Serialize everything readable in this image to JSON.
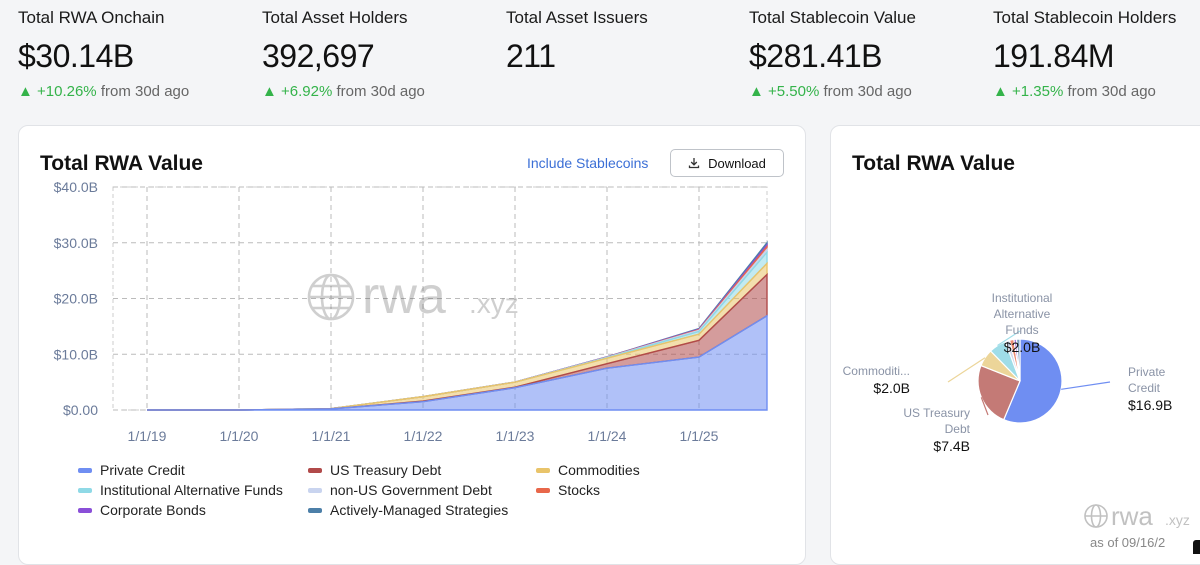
{
  "stats": [
    {
      "label": "Total RWA Onchain",
      "value": "$30.14B",
      "delta": "+10.26%",
      "suffix": "from 30d ago"
    },
    {
      "label": "Total Asset Holders",
      "value": "392,697",
      "delta": "+6.92%",
      "suffix": "from 30d ago"
    },
    {
      "label": "Total Asset Issuers",
      "value": "211",
      "delta": "",
      "suffix": ""
    },
    {
      "label": "Total Stablecoin Value",
      "value": "$281.41B",
      "delta": "+5.50%",
      "suffix": "from 30d ago"
    },
    {
      "label": "Total Stablecoin Holders",
      "value": "191.84M",
      "delta": "+1.35%",
      "suffix": "from 30d ago"
    }
  ],
  "colors": {
    "up": "#34b34a",
    "link": "#3b6fd6"
  },
  "left_card": {
    "title": "Total RWA Value",
    "include_link": "Include Stablecoins",
    "download_label": "Download",
    "watermark_main": "rwa",
    "watermark_suffix": ".xyz"
  },
  "right_card": {
    "title": "Total RWA Value",
    "watermark_main": "rwa",
    "watermark_suffix": ".xyz",
    "as_of": "as of 09/16/2"
  },
  "chart_data": [
    {
      "type": "area",
      "title": "Total RWA Value",
      "stacked": true,
      "x": [
        "1/1/19",
        "1/1/20",
        "1/1/21",
        "1/1/22",
        "1/1/23",
        "1/1/24",
        "1/1/25",
        "9/16/25"
      ],
      "x_ticks": [
        "1/1/19",
        "1/1/20",
        "1/1/21",
        "1/1/22",
        "1/1/23",
        "1/1/24",
        "1/1/25"
      ],
      "y_ticks": [
        "$0.00",
        "$10.0B",
        "$20.0B",
        "$30.0B",
        "$40.0B"
      ],
      "ylim": [
        0,
        40
      ],
      "y_unit": "B USD",
      "grid": true,
      "legend_position": "bottom",
      "series": [
        {
          "name": "Private Credit",
          "color": "#6f8ef2",
          "values": [
            0,
            0,
            0.2,
            1.5,
            4.0,
            7.5,
            9.5,
            16.9
          ]
        },
        {
          "name": "US Treasury Debt",
          "color": "#b14a4a",
          "values": [
            0,
            0,
            0,
            0.1,
            0.1,
            0.8,
            3.0,
            7.4
          ]
        },
        {
          "name": "Commodities",
          "color": "#e9c46a",
          "values": [
            0,
            0,
            0.05,
            0.8,
            0.9,
            1.0,
            1.1,
            2.0
          ]
        },
        {
          "name": "Institutional Alternative Funds",
          "color": "#8fd9e6",
          "values": [
            0,
            0,
            0,
            0,
            0,
            0.1,
            0.5,
            2.0
          ]
        },
        {
          "name": "non-US Government Debt",
          "color": "#c9d4ef",
          "values": [
            0,
            0,
            0,
            0,
            0,
            0.05,
            0.2,
            0.5
          ]
        },
        {
          "name": "Stocks",
          "color": "#e8674a",
          "values": [
            0,
            0,
            0,
            0,
            0,
            0.02,
            0.1,
            0.5
          ]
        },
        {
          "name": "Corporate Bonds",
          "color": "#8a4fd8",
          "values": [
            0,
            0,
            0,
            0,
            0.01,
            0.05,
            0.1,
            0.3
          ]
        },
        {
          "name": "Actively-Managed Strategies",
          "color": "#4c7fa8",
          "values": [
            0,
            0,
            0,
            0,
            0,
            0.02,
            0.1,
            0.4
          ]
        }
      ]
    },
    {
      "type": "pie",
      "title": "Total RWA Value",
      "slices": [
        {
          "name": "Private Credit",
          "value": 16.9,
          "label_lines": [
            "Private",
            "Credit"
          ],
          "amount": "$16.9B",
          "color": "#6f8ef2"
        },
        {
          "name": "US Treasury Debt",
          "value": 7.4,
          "label_lines": [
            "US Treasury",
            "Debt"
          ],
          "amount": "$7.4B",
          "color": "#c47a76"
        },
        {
          "name": "Commodities",
          "value": 2.0,
          "label_lines": [
            "Commoditi..."
          ],
          "amount": "$2.0B",
          "color": "#ecd599"
        },
        {
          "name": "Institutional Alternative Funds",
          "value": 2.0,
          "label_lines": [
            "Institutional",
            "Alternative",
            "Funds"
          ],
          "amount": "$2.0B",
          "color": "#9fdde8"
        },
        {
          "name": "non-US Government Debt",
          "value": 0.5,
          "label_lines": [],
          "amount": "",
          "color": "#cfd8ee"
        },
        {
          "name": "Stocks",
          "value": 0.5,
          "label_lines": [],
          "amount": "",
          "color": "#ea8a72"
        },
        {
          "name": "Corporate Bonds",
          "value": 0.3,
          "label_lines": [],
          "amount": "",
          "color": "#a57ae0"
        },
        {
          "name": "Actively-Managed Strategies",
          "value": 0.4,
          "label_lines": [],
          "amount": "",
          "color": "#7aa0c2"
        }
      ]
    }
  ]
}
